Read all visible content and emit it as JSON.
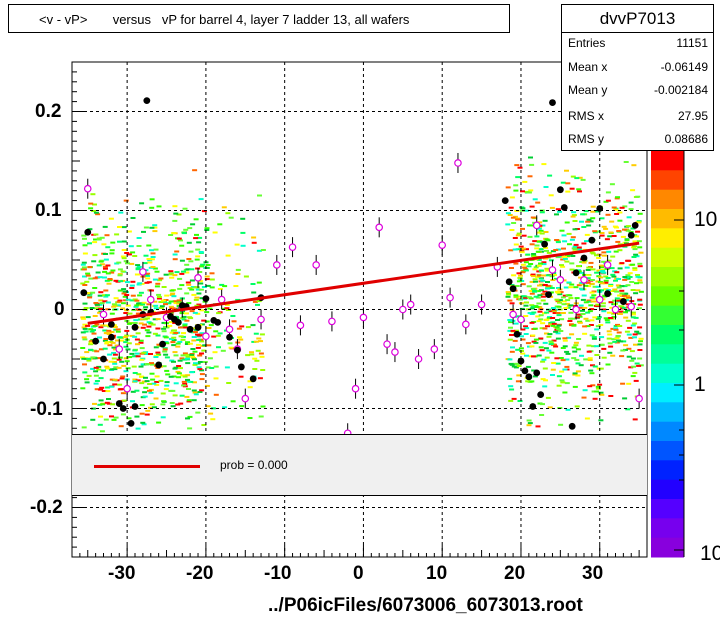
{
  "title": "<v - vP>       versus   vP for barrel 4, layer 7 ladder 13, all wafers",
  "stats": {
    "name": "dvvP7013",
    "rows": [
      {
        "key": "Entries",
        "value": "11151"
      },
      {
        "key": "Mean x",
        "value": "-0.06149"
      },
      {
        "key": "Mean y",
        "value": "-0.002184"
      },
      {
        "key": "RMS x",
        "value": "27.95"
      },
      {
        "key": "RMS y",
        "value": "0.08686"
      }
    ]
  },
  "legend": {
    "label": "prob = 0.000",
    "color": "#e00000"
  },
  "x_axis": {
    "title": "../P06icFiles/6073006_6073013.root",
    "ticks": [
      "-30",
      "-20",
      "-10",
      "0",
      "10",
      "20",
      "30"
    ]
  },
  "y_axis": {
    "ticks": [
      "0.2",
      "0.1",
      "0",
      "-0.1",
      "-0.2"
    ]
  },
  "z_axis": {
    "ticks": [
      "10",
      "1",
      "10"
    ],
    "scale": "log"
  },
  "chart_data": {
    "type": "scatter",
    "xlim": [
      -37,
      36
    ],
    "ylim": [
      -0.25,
      0.25
    ],
    "grid": true,
    "fit_line": {
      "x": [
        -35,
        35
      ],
      "y": [
        -0.014,
        0.067
      ],
      "color": "#e00000"
    },
    "profile_points_black": [
      [
        -35,
        0.078
      ],
      [
        -35.5,
        0.017
      ],
      [
        -34,
        -0.032
      ],
      [
        -33,
        -0.05
      ],
      [
        -32,
        -0.015
      ],
      [
        -32,
        -0.028
      ],
      [
        -31,
        -0.095
      ],
      [
        -30.5,
        -0.1
      ],
      [
        -29.5,
        -0.115
      ],
      [
        -29,
        -0.098
      ],
      [
        -29,
        -0.018
      ],
      [
        -28,
        -0.005
      ],
      [
        -27.5,
        0.211
      ],
      [
        -27,
        -0.003
      ],
      [
        -26,
        -0.056
      ],
      [
        -25.5,
        -0.035
      ],
      [
        -24.5,
        -0.007
      ],
      [
        -24,
        -0.01
      ],
      [
        -23.5,
        -0.013
      ],
      [
        -23,
        0.004
      ],
      [
        -22.5,
        0.003
      ],
      [
        -22,
        -0.02
      ],
      [
        -21,
        -0.018
      ],
      [
        -20,
        0.011
      ],
      [
        -19,
        -0.011
      ],
      [
        -18.5,
        -0.013
      ],
      [
        -17,
        -0.028
      ],
      [
        -16,
        -0.041
      ],
      [
        -15.5,
        -0.058
      ],
      [
        -14,
        -0.07
      ],
      [
        -13,
        0.012
      ],
      [
        18,
        0.11
      ],
      [
        18.5,
        0.028
      ],
      [
        19,
        0.021
      ],
      [
        19.5,
        -0.025
      ],
      [
        20,
        -0.052
      ],
      [
        20.5,
        -0.062
      ],
      [
        21,
        -0.068
      ],
      [
        21.5,
        -0.098
      ],
      [
        22,
        -0.064
      ],
      [
        22.5,
        -0.086
      ],
      [
        23,
        0.066
      ],
      [
        23.5,
        0.015
      ],
      [
        24,
        0.209
      ],
      [
        25,
        0.121
      ],
      [
        25.5,
        0.103
      ],
      [
        26,
        0.168
      ],
      [
        26.5,
        -0.118
      ],
      [
        27,
        0.037
      ],
      [
        28,
        0.052
      ],
      [
        29,
        0.07
      ],
      [
        30,
        0.102
      ],
      [
        31,
        0.016
      ],
      [
        33,
        0.008
      ],
      [
        34,
        0.075
      ],
      [
        34.5,
        0.085
      ]
    ],
    "profile_points_open": [
      [
        -35,
        0.122
      ],
      [
        -33,
        -0.005
      ],
      [
        -31,
        -0.04
      ],
      [
        -30,
        -0.08
      ],
      [
        -28,
        0.038
      ],
      [
        -27,
        0.01
      ],
      [
        -25,
        -0.008
      ],
      [
        -23,
        0.002
      ],
      [
        -21,
        0.032
      ],
      [
        -20,
        -0.027
      ],
      [
        -18,
        0.01
      ],
      [
        -17,
        -0.02
      ],
      [
        -16,
        -0.04
      ],
      [
        -15,
        -0.09
      ],
      [
        -13,
        -0.01
      ],
      [
        -11,
        0.045
      ],
      [
        -9,
        0.063
      ],
      [
        -8,
        -0.016
      ],
      [
        -6,
        0.045
      ],
      [
        -4,
        -0.012
      ],
      [
        -2,
        -0.125
      ],
      [
        -1,
        -0.08
      ],
      [
        0,
        -0.008
      ],
      [
        2,
        0.083
      ],
      [
        3,
        -0.035
      ],
      [
        4,
        -0.043
      ],
      [
        5,
        0.0
      ],
      [
        6,
        0.005
      ],
      [
        7,
        -0.05
      ],
      [
        9,
        -0.04
      ],
      [
        10,
        0.065
      ],
      [
        11,
        0.012
      ],
      [
        12,
        0.148
      ],
      [
        13,
        -0.015
      ],
      [
        15,
        0.005
      ],
      [
        17,
        0.043
      ],
      [
        19,
        -0.005
      ],
      [
        20,
        -0.01
      ],
      [
        22,
        0.085
      ],
      [
        24,
        0.04
      ],
      [
        25,
        0.03
      ],
      [
        27,
        0.0
      ],
      [
        28,
        0.03
      ],
      [
        30,
        0.01
      ],
      [
        31,
        0.045
      ],
      [
        32,
        0.0
      ],
      [
        34,
        0.003
      ],
      [
        35,
        -0.09
      ]
    ]
  }
}
